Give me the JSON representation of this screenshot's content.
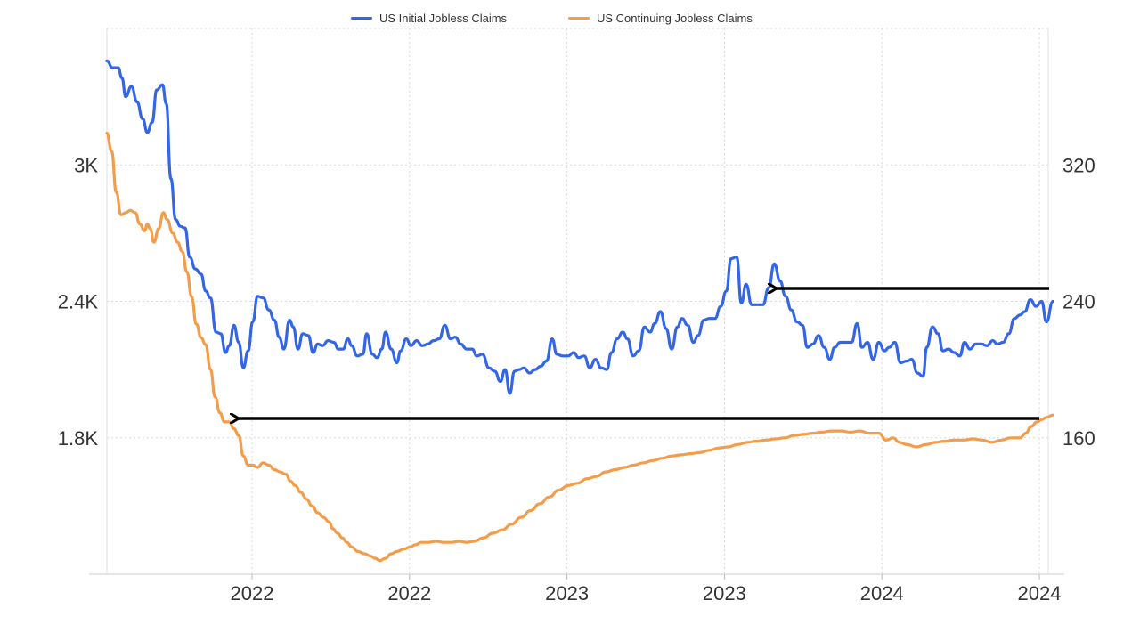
{
  "chart_data": {
    "type": "line",
    "legend_placement": "top-center",
    "grid": true,
    "x_tick_labels": [
      "2022",
      "2022",
      "2023",
      "2023",
      "2024",
      "2024"
    ],
    "left_axis": {
      "ticks": [
        1800,
        2400,
        3000
      ],
      "tick_labels": [
        "1.8K",
        "2.4K",
        "3K"
      ],
      "range": [
        1200,
        3600
      ]
    },
    "right_axis": {
      "ticks": [
        160,
        240,
        320
      ],
      "tick_labels": [
        "160",
        "240",
        "320"
      ],
      "range": [
        80,
        400
      ]
    },
    "x_range": [
      0,
      100
    ],
    "series": [
      {
        "name": "US Initial Jobless Claims",
        "axis": "right",
        "color": "#3366e6",
        "points": [
          [
            0,
            381
          ],
          [
            0.6,
            377
          ],
          [
            1.2,
            377
          ],
          [
            1.6,
            371
          ],
          [
            2,
            360
          ],
          [
            2.6,
            366
          ],
          [
            3.2,
            357
          ],
          [
            3.8,
            347
          ],
          [
            4.3,
            339
          ],
          [
            4.8,
            345
          ],
          [
            5.3,
            364
          ],
          [
            5.9,
            367
          ],
          [
            6.3,
            356
          ],
          [
            6.8,
            312
          ],
          [
            7.3,
            288
          ],
          [
            7.8,
            284
          ],
          [
            8.3,
            283
          ],
          [
            8.8,
            266
          ],
          [
            9.4,
            259
          ],
          [
            10,
            256
          ],
          [
            10.5,
            246
          ],
          [
            11,
            242
          ],
          [
            11.6,
            222
          ],
          [
            12.1,
            221
          ],
          [
            12.6,
            210
          ],
          [
            13,
            214
          ],
          [
            13.5,
            226
          ],
          [
            14,
            216
          ],
          [
            14.5,
            201
          ],
          [
            15,
            211
          ],
          [
            15.5,
            228
          ],
          [
            16,
            243
          ],
          [
            16.6,
            242
          ],
          [
            17.2,
            235
          ],
          [
            17.8,
            229
          ],
          [
            18.3,
            219
          ],
          [
            18.8,
            212
          ],
          [
            19.4,
            229
          ],
          [
            19.8,
            225
          ],
          [
            20.3,
            212
          ],
          [
            20.8,
            221
          ],
          [
            21.4,
            220
          ],
          [
            21.9,
            210
          ],
          [
            22.4,
            215
          ],
          [
            22.9,
            214
          ],
          [
            23.5,
            217
          ],
          [
            24.1,
            216
          ],
          [
            24.6,
            212
          ],
          [
            25.1,
            212
          ],
          [
            25.6,
            218
          ],
          [
            26,
            214
          ],
          [
            26.6,
            208
          ],
          [
            27.2,
            209
          ],
          [
            27.6,
            221
          ],
          [
            28.2,
            209
          ],
          [
            28.7,
            207
          ],
          [
            29.2,
            212
          ],
          [
            29.6,
            222
          ],
          [
            30.2,
            212
          ],
          [
            30.8,
            204
          ],
          [
            31.2,
            211
          ],
          [
            31.8,
            218
          ],
          [
            32.3,
            214
          ],
          [
            32.9,
            217
          ],
          [
            33.5,
            214
          ],
          [
            34.1,
            215
          ],
          [
            34.7,
            217
          ],
          [
            35.3,
            218
          ],
          [
            35.9,
            226
          ],
          [
            36.5,
            218
          ],
          [
            37,
            219
          ],
          [
            37.6,
            215
          ],
          [
            38.2,
            212
          ],
          [
            38.8,
            212
          ],
          [
            39.3,
            208
          ],
          [
            39.9,
            209
          ],
          [
            40.6,
            201
          ],
          [
            41.2,
            199
          ],
          [
            41.8,
            193
          ],
          [
            42.3,
            200
          ],
          [
            42.8,
            186
          ],
          [
            43.3,
            199
          ],
          [
            43.8,
            200
          ],
          [
            44.3,
            201
          ],
          [
            44.9,
            198
          ],
          [
            45.5,
            200
          ],
          [
            46.1,
            202
          ],
          [
            46.7,
            205
          ],
          [
            47.3,
            218
          ],
          [
            47.8,
            209
          ],
          [
            48.4,
            208
          ],
          [
            49,
            208
          ],
          [
            49.6,
            210
          ],
          [
            50.1,
            207
          ],
          [
            50.7,
            208
          ],
          [
            51.3,
            201
          ],
          [
            51.9,
            206
          ],
          [
            52.5,
            201
          ],
          [
            53.1,
            200
          ],
          [
            53.6,
            210
          ],
          [
            54.2,
            218
          ],
          [
            54.8,
            222
          ],
          [
            55.3,
            218
          ],
          [
            55.9,
            208
          ],
          [
            56.5,
            211
          ],
          [
            57.1,
            225
          ],
          [
            57.7,
            222
          ],
          [
            58.2,
            227
          ],
          [
            58.8,
            234
          ],
          [
            59.4,
            224
          ],
          [
            60,
            212
          ],
          [
            60.6,
            225
          ],
          [
            61.1,
            230
          ],
          [
            61.7,
            226
          ],
          [
            62.3,
            216
          ],
          [
            62.8,
            220
          ],
          [
            63.4,
            229
          ],
          [
            64,
            230
          ],
          [
            64.6,
            230
          ],
          [
            65.2,
            237
          ],
          [
            65.8,
            246
          ],
          [
            66.3,
            265
          ],
          [
            66.9,
            266
          ],
          [
            67.4,
            239
          ],
          [
            67.9,
            250
          ],
          [
            68.5,
            238
          ],
          [
            69.1,
            238
          ],
          [
            69.7,
            238
          ],
          [
            70.3,
            248
          ],
          [
            70.9,
            262
          ],
          [
            71.5,
            252
          ],
          [
            72.1,
            243
          ],
          [
            72.7,
            235
          ],
          [
            73.3,
            228
          ],
          [
            73.9,
            226
          ],
          [
            74.4,
            213
          ],
          [
            75,
            215
          ],
          [
            75.6,
            220
          ],
          [
            76.2,
            213
          ],
          [
            76.8,
            206
          ],
          [
            77.3,
            213
          ],
          [
            77.9,
            216
          ],
          [
            78.5,
            216
          ],
          [
            79.1,
            216
          ],
          [
            79.7,
            227
          ],
          [
            80.2,
            213
          ],
          [
            80.8,
            216
          ],
          [
            81.4,
            206
          ],
          [
            82,
            216
          ],
          [
            82.6,
            211
          ],
          [
            83.1,
            213
          ],
          [
            83.7,
            216
          ],
          [
            84.3,
            204
          ],
          [
            85,
            205
          ],
          [
            85.5,
            206
          ],
          [
            86.1,
            198
          ],
          [
            86.7,
            196
          ],
          [
            87.1,
            213
          ],
          [
            87.7,
            225
          ],
          [
            88.3,
            221
          ],
          [
            88.8,
            211
          ],
          [
            89.4,
            212
          ],
          [
            90,
            210
          ],
          [
            90.6,
            208
          ],
          [
            91.1,
            216
          ],
          [
            91.7,
            212
          ],
          [
            92.3,
            215
          ],
          [
            92.9,
            215
          ],
          [
            93.5,
            214
          ],
          [
            94.1,
            217
          ],
          [
            94.6,
            215
          ],
          [
            95.2,
            216
          ],
          [
            95.8,
            221
          ],
          [
            96.4,
            230
          ],
          [
            97,
            232
          ],
          [
            97.5,
            234
          ],
          [
            98.1,
            241
          ],
          [
            98.7,
            237
          ],
          [
            99.3,
            240
          ],
          [
            99.8,
            228
          ],
          [
            100.5,
            240
          ]
        ]
      },
      {
        "name": "US Continuing Jobless Claims",
        "axis": "left",
        "color": "#f39c4a",
        "points": [
          [
            0,
            3140
          ],
          [
            0.5,
            3060
          ],
          [
            1,
            2880
          ],
          [
            1.5,
            2780
          ],
          [
            2,
            2790
          ],
          [
            2.5,
            2800
          ],
          [
            3,
            2790
          ],
          [
            3.5,
            2740
          ],
          [
            4,
            2710
          ],
          [
            4.3,
            2740
          ],
          [
            4.6,
            2720
          ],
          [
            5,
            2660
          ],
          [
            5.5,
            2720
          ],
          [
            6,
            2790
          ],
          [
            6.4,
            2760
          ],
          [
            7,
            2700
          ],
          [
            7.5,
            2660
          ],
          [
            8,
            2620
          ],
          [
            8.5,
            2530
          ],
          [
            9,
            2420
          ],
          [
            9.5,
            2300
          ],
          [
            10,
            2240
          ],
          [
            10.5,
            2210
          ],
          [
            11,
            2100
          ],
          [
            11.5,
            1980
          ],
          [
            12,
            1910
          ],
          [
            12.5,
            1870
          ],
          [
            13,
            1870
          ],
          [
            13.5,
            1840
          ],
          [
            14,
            1810
          ],
          [
            14.5,
            1720
          ],
          [
            15,
            1680
          ],
          [
            15.5,
            1680
          ],
          [
            16,
            1670
          ],
          [
            16.6,
            1690
          ],
          [
            17.2,
            1680
          ],
          [
            17.8,
            1660
          ],
          [
            18.4,
            1650
          ],
          [
            19,
            1640
          ],
          [
            19.5,
            1610
          ],
          [
            20,
            1590
          ],
          [
            20.6,
            1560
          ],
          [
            21.2,
            1530
          ],
          [
            21.8,
            1500
          ],
          [
            22.4,
            1470
          ],
          [
            23,
            1450
          ],
          [
            23.6,
            1430
          ],
          [
            24,
            1400
          ],
          [
            24.5,
            1380
          ],
          [
            25,
            1360
          ],
          [
            25.5,
            1340
          ],
          [
            26,
            1320
          ],
          [
            26.7,
            1300
          ],
          [
            27.4,
            1290
          ],
          [
            28,
            1280
          ],
          [
            28.5,
            1270
          ],
          [
            29,
            1260
          ],
          [
            29.6,
            1270
          ],
          [
            30.2,
            1290
          ],
          [
            30.8,
            1300
          ],
          [
            31.5,
            1310
          ],
          [
            32.2,
            1320
          ],
          [
            32.8,
            1330
          ],
          [
            33.4,
            1340
          ],
          [
            34.2,
            1340
          ],
          [
            35,
            1345
          ],
          [
            35.8,
            1340
          ],
          [
            36.6,
            1340
          ],
          [
            37.4,
            1345
          ],
          [
            38.2,
            1340
          ],
          [
            39,
            1345
          ],
          [
            40,
            1360
          ],
          [
            41,
            1380
          ],
          [
            42,
            1395
          ],
          [
            43,
            1420
          ],
          [
            44,
            1450
          ],
          [
            45,
            1480
          ],
          [
            46,
            1510
          ],
          [
            47,
            1540
          ],
          [
            48,
            1570
          ],
          [
            49,
            1590
          ],
          [
            50,
            1600
          ],
          [
            51,
            1620
          ],
          [
            52,
            1630
          ],
          [
            53,
            1650
          ],
          [
            54,
            1660
          ],
          [
            55,
            1670
          ],
          [
            56,
            1680
          ],
          [
            57,
            1690
          ],
          [
            58,
            1700
          ],
          [
            59,
            1710
          ],
          [
            60,
            1720
          ],
          [
            61,
            1725
          ],
          [
            62,
            1730
          ],
          [
            63,
            1735
          ],
          [
            64,
            1745
          ],
          [
            65,
            1755
          ],
          [
            66,
            1760
          ],
          [
            67,
            1770
          ],
          [
            68,
            1780
          ],
          [
            69,
            1785
          ],
          [
            70,
            1790
          ],
          [
            71,
            1795
          ],
          [
            72,
            1800
          ],
          [
            73,
            1810
          ],
          [
            74,
            1815
          ],
          [
            75,
            1820
          ],
          [
            76,
            1825
          ],
          [
            77,
            1830
          ],
          [
            78,
            1830
          ],
          [
            79,
            1825
          ],
          [
            80,
            1830
          ],
          [
            81,
            1820
          ],
          [
            82,
            1820
          ],
          [
            82.8,
            1790
          ],
          [
            83.5,
            1800
          ],
          [
            84.2,
            1780
          ],
          [
            85,
            1770
          ],
          [
            86,
            1760
          ],
          [
            87,
            1770
          ],
          [
            88,
            1780
          ],
          [
            89,
            1785
          ],
          [
            90,
            1790
          ],
          [
            91,
            1790
          ],
          [
            92,
            1795
          ],
          [
            93,
            1790
          ],
          [
            94,
            1780
          ],
          [
            95,
            1790
          ],
          [
            96,
            1800
          ],
          [
            97,
            1800
          ],
          [
            97.6,
            1820
          ],
          [
            98.2,
            1850
          ],
          [
            98.8,
            1870
          ],
          [
            99.3,
            1880
          ],
          [
            99.8,
            1890
          ],
          [
            100.5,
            1900
          ]
        ]
      }
    ]
  }
}
